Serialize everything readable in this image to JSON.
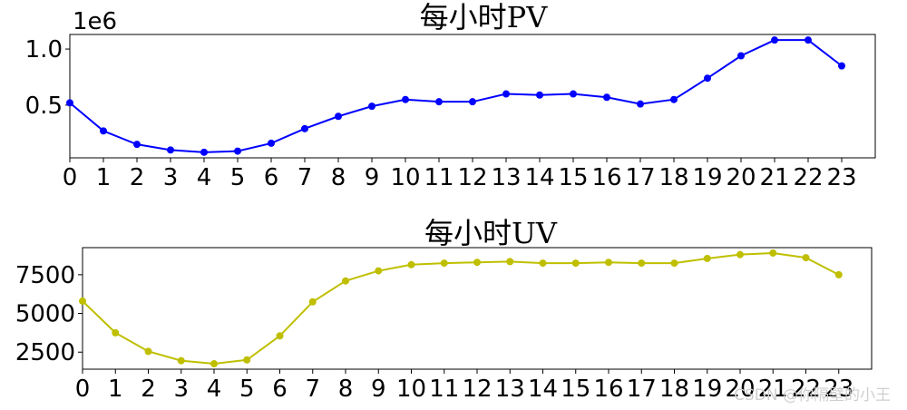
{
  "chart_data": [
    {
      "type": "line",
      "title": "每小时PV",
      "offset_text": "1e6",
      "color": "#0000ff",
      "x": [
        0,
        1,
        2,
        3,
        4,
        5,
        6,
        7,
        8,
        9,
        10,
        11,
        12,
        13,
        14,
        15,
        16,
        17,
        18,
        19,
        20,
        21,
        22,
        23
      ],
      "x_tick_labels": [
        "0",
        "1",
        "2",
        "3",
        "4",
        "5",
        "6",
        "7",
        "8",
        "9",
        "10",
        "11",
        "12",
        "13",
        "14",
        "15",
        "16",
        "17",
        "18",
        "19",
        "20",
        "21",
        "22",
        "23"
      ],
      "y": [
        0.52,
        0.27,
        0.15,
        0.1,
        0.08,
        0.09,
        0.16,
        0.29,
        0.4,
        0.49,
        0.55,
        0.53,
        0.53,
        0.6,
        0.59,
        0.6,
        0.57,
        0.51,
        0.55,
        0.74,
        0.94,
        1.08,
        1.08,
        0.85
      ],
      "y_ticks": [
        0.5,
        1.0
      ],
      "y_tick_labels": [
        "0.5",
        "1.0"
      ],
      "xlim": [
        0,
        24
      ],
      "ylim": [
        0.03,
        1.13
      ],
      "grid": false,
      "legend": false
    },
    {
      "type": "line",
      "title": "每小时UV",
      "color": "#bfbf00",
      "x": [
        0,
        1,
        2,
        3,
        4,
        5,
        6,
        7,
        8,
        9,
        10,
        11,
        12,
        13,
        14,
        15,
        16,
        17,
        18,
        19,
        20,
        21,
        22,
        23
      ],
      "x_tick_labels": [
        "0",
        "1",
        "2",
        "3",
        "4",
        "5",
        "6",
        "7",
        "8",
        "9",
        "10",
        "11",
        "12",
        "13",
        "14",
        "15",
        "16",
        "17",
        "18",
        "19",
        "20",
        "21",
        "22",
        "23"
      ],
      "y": [
        5800,
        3750,
        2550,
        1950,
        1750,
        2000,
        3550,
        5750,
        7100,
        7750,
        8150,
        8250,
        8300,
        8350,
        8250,
        8250,
        8300,
        8250,
        8250,
        8550,
        8800,
        8900,
        8600,
        7500
      ],
      "y_ticks": [
        2500,
        5000,
        7500
      ],
      "y_tick_labels": [
        "2500",
        "5000",
        "7500"
      ],
      "xlim": [
        0,
        24
      ],
      "ylim": [
        1400,
        9250
      ],
      "grid": false,
      "legend": false
    }
  ],
  "watermark": "CSDN @你隔壁的小王"
}
